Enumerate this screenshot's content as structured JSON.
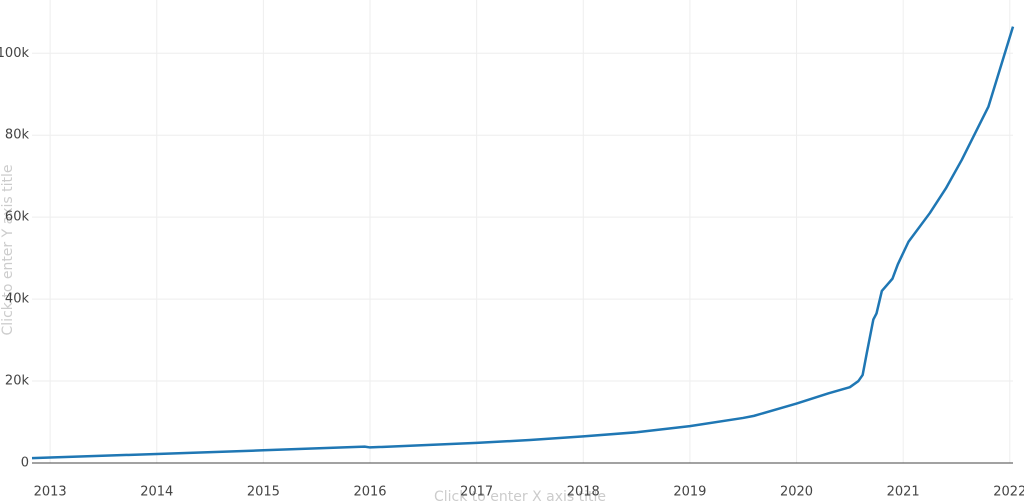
{
  "chart_data": {
    "type": "line",
    "x_title": "Click to enter X axis title",
    "y_title": "Click to enter Y axis title",
    "x": [
      2012.83,
      2014,
      2015,
      2015.95,
      2016,
      2017,
      2017.5,
      2018,
      2018.5,
      2019,
      2019.5,
      2019.6,
      2020,
      2020.3,
      2020.5,
      2020.58,
      2020.62,
      2020.66,
      2020.72,
      2020.75,
      2020.8,
      2020.85,
      2020.9,
      2020.95,
      2021.05,
      2021.25,
      2021.4,
      2021.55,
      2021.8,
      2022.03
    ],
    "series": [
      {
        "color": "#1f77b4",
        "values": [
          1200,
          2200,
          3100,
          4000,
          3800,
          4900,
          5600,
          6500,
          7500,
          9000,
          11000,
          11500,
          14500,
          17000,
          18500,
          20000,
          21500,
          27000,
          35000,
          36500,
          42000,
          43500,
          45000,
          48500,
          54000,
          61000,
          67000,
          74000,
          87000,
          106500
        ]
      }
    ],
    "xlim": [
      2012.83,
      2022.03
    ],
    "xticks": [
      2013,
      2014,
      2015,
      2016,
      2017,
      2018,
      2019,
      2020,
      2021,
      2022
    ],
    "ylim": [
      0,
      113000
    ],
    "yticks": [
      0,
      {
        "value": 20000,
        "label": "20k"
      },
      {
        "value": 40000,
        "label": "40k"
      },
      {
        "value": 60000,
        "label": "60k"
      },
      {
        "value": 80000,
        "label": "80k"
      },
      {
        "value": 100000,
        "label": "100k"
      }
    ],
    "grid": true
  }
}
